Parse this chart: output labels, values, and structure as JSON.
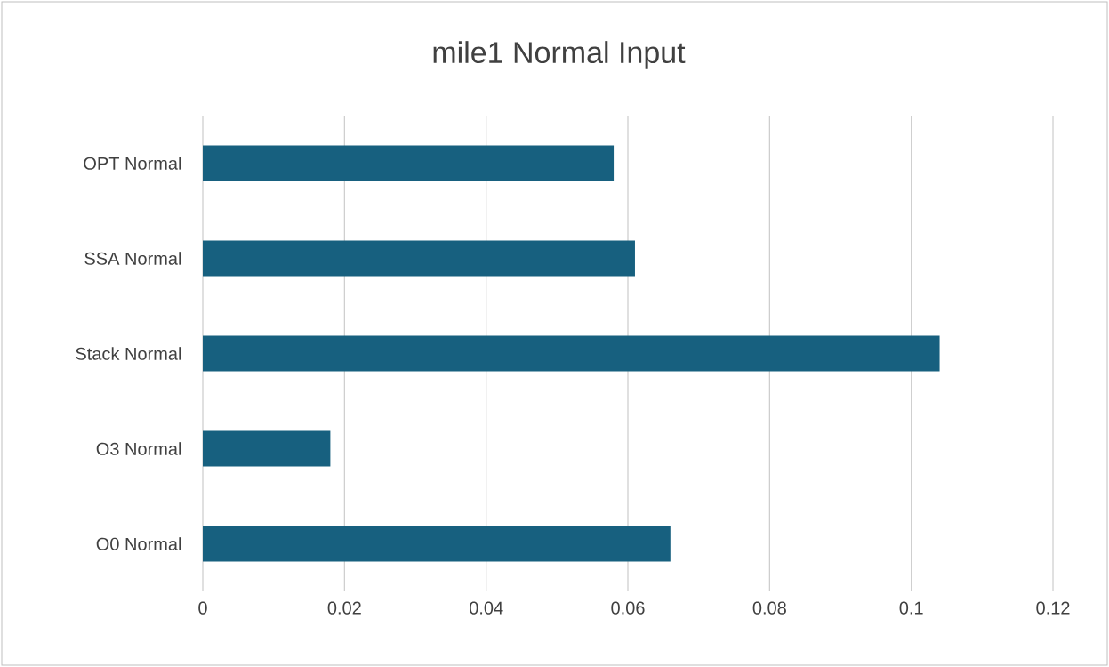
{
  "chart_data": {
    "type": "bar",
    "orientation": "horizontal",
    "title": "mile1 Normal Input",
    "categories": [
      "OPT Normal",
      "SSA Normal",
      "Stack Normal",
      "O3 Normal",
      "O0 Normal"
    ],
    "values": [
      0.058,
      0.061,
      0.104,
      0.018,
      0.066
    ],
    "color": "#17607f",
    "xlim": [
      0,
      0.12
    ],
    "xticks": [
      0,
      0.02,
      0.04,
      0.06,
      0.08,
      0.1,
      0.12
    ],
    "grid": "x"
  }
}
